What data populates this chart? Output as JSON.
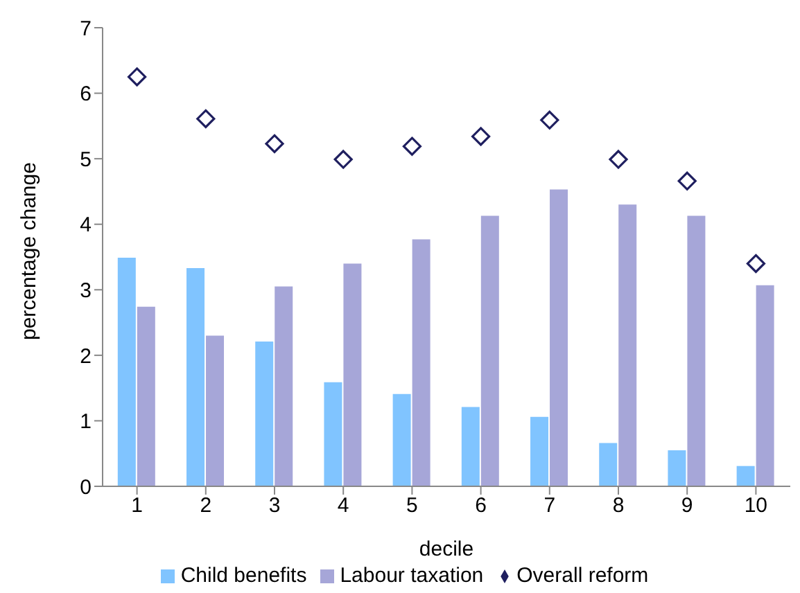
{
  "chart_data": {
    "type": "bar",
    "xlabel": "decile",
    "ylabel": "percentage change",
    "categories": [
      "1",
      "2",
      "3",
      "4",
      "5",
      "6",
      "7",
      "8",
      "9",
      "10"
    ],
    "series": [
      {
        "name": "Child benefits",
        "color": "#80c4ff",
        "values": [
          3.49,
          3.33,
          2.21,
          1.59,
          1.41,
          1.21,
          1.06,
          0.66,
          0.55,
          0.31
        ]
      },
      {
        "name": "Labour taxation",
        "color": "#a6a6d8",
        "values": [
          2.74,
          2.3,
          3.05,
          3.4,
          3.77,
          4.13,
          4.53,
          4.3,
          4.13,
          3.07
        ]
      },
      {
        "name": "Overall reform",
        "type": "scatter",
        "marker": "diamond",
        "color": "#1f1f5f",
        "values": [
          6.25,
          5.61,
          5.23,
          4.99,
          5.19,
          5.34,
          5.59,
          4.99,
          4.66,
          3.4
        ]
      }
    ],
    "ylim": [
      0,
      7
    ],
    "yticks": [
      0,
      1,
      2,
      3,
      4,
      5,
      6,
      7
    ],
    "grid": false,
    "legend": "bottom"
  }
}
